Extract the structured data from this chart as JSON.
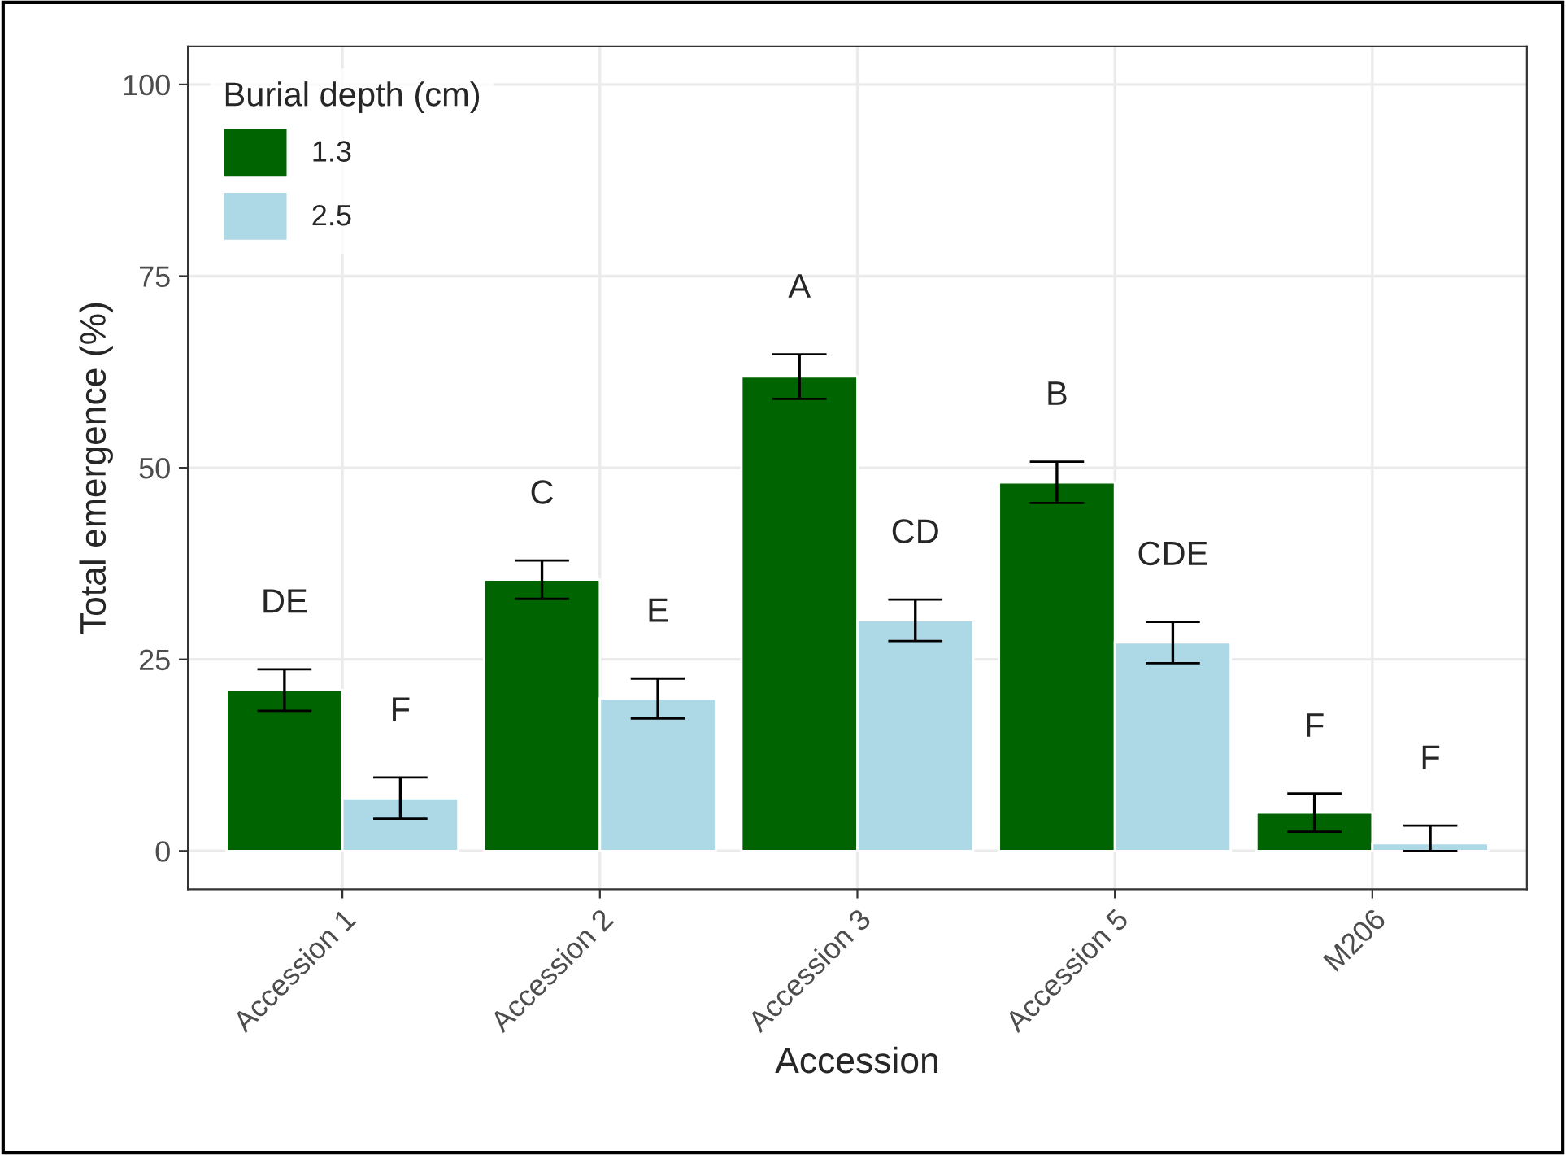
{
  "chart_data": {
    "type": "bar",
    "xlabel": "Accession",
    "ylabel": "Total emergence (%)",
    "legend_title": "Burial depth (cm)",
    "categories": [
      "Accession 1",
      "Accession 2",
      "Accession 3",
      "Accession 5",
      "M206"
    ],
    "series": [
      {
        "name": "1.3",
        "color": "#006400",
        "values": [
          21,
          35.4,
          61.9,
          48.1,
          5.0
        ],
        "errors": [
          2.7,
          2.5,
          2.9,
          2.7,
          2.5
        ]
      },
      {
        "name": "2.5",
        "color": "#add8e6",
        "values": [
          6.9,
          19.9,
          30.1,
          27.2,
          1.0
        ],
        "errors": [
          2.7,
          2.6,
          2.7,
          2.7,
          [
            0,
            3.3
          ]
        ]
      }
    ],
    "ylim": [
      -5,
      105
    ],
    "yticks": [
      0,
      25,
      50,
      75,
      100
    ],
    "grid": true,
    "legend": "top left",
    "annotations": [
      "DE",
      "F",
      "C",
      "E",
      "A",
      "CD",
      "B",
      "CDE",
      "F",
      "F"
    ]
  }
}
